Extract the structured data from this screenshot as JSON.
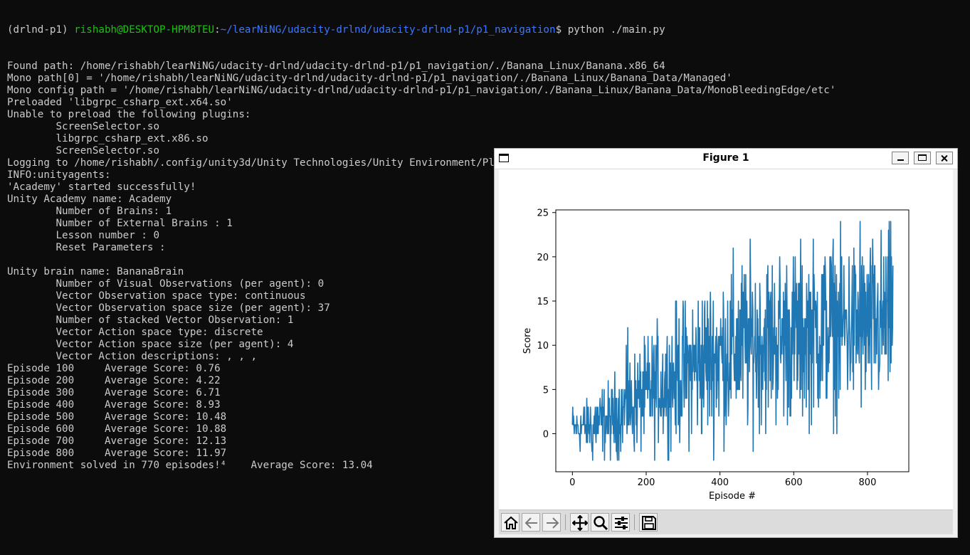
{
  "terminal": {
    "prompt": {
      "env": "(drlnd-p1) ",
      "user_host": "rishabh@DESKTOP-HPM8TEU",
      "sep": ":",
      "cwd": "~/learNiNG/udacity-drlnd/udacity-drlnd-p1/p1_navigation",
      "symbol": "$ ",
      "command": "python ./main.py"
    },
    "lines": [
      "Found path: /home/rishabh/learNiNG/udacity-drlnd/udacity-drlnd-p1/p1_navigation/./Banana_Linux/Banana.x86_64",
      "Mono path[0] = '/home/rishabh/learNiNG/udacity-drlnd/udacity-drlnd-p1/p1_navigation/./Banana_Linux/Banana_Data/Managed'",
      "Mono config path = '/home/rishabh/learNiNG/udacity-drlnd/udacity-drlnd-p1/p1_navigation/./Banana_Linux/Banana_Data/MonoBleedingEdge/etc'",
      "Preloaded 'libgrpc_csharp_ext.x64.so'",
      "Unable to preload the following plugins:",
      "        ScreenSelector.so",
      "        libgrpc_csharp_ext.x86.so",
      "        ScreenSelector.so",
      "Logging to /home/rishabh/.config/unity3d/Unity Technologies/Unity Environment/Player.log",
      "INFO:unityagents:",
      "'Academy' started successfully!",
      "Unity Academy name: Academy",
      "        Number of Brains: 1",
      "        Number of External Brains : 1",
      "        Lesson number : 0",
      "        Reset Parameters :",
      "",
      "Unity brain name: BananaBrain",
      "        Number of Visual Observations (per agent): 0",
      "        Vector Observation space type: continuous",
      "        Vector Observation space size (per agent): 37",
      "        Number of stacked Vector Observation: 1",
      "        Vector Action space type: discrete",
      "        Vector Action space size (per agent): 4",
      "        Vector Action descriptions: , , ,",
      "Episode 100     Average Score: 0.76",
      "Episode 200     Average Score: 4.22",
      "Episode 300     Average Score: 6.71",
      "Episode 400     Average Score: 8.93",
      "Episode 500     Average Score: 10.48",
      "Episode 600     Average Score: 10.88",
      "Episode 700     Average Score: 12.13",
      "Episode 800     Average Score: 11.97",
      "Environment solved in 770 episodes!⁴    Average Score: 13.04"
    ]
  },
  "figure": {
    "title": "Figure 1",
    "toolbar": {
      "home_icon": "home-icon",
      "back_icon": "arrow-left-icon",
      "forward_icon": "arrow-right-icon",
      "pan_icon": "move-icon",
      "zoom_icon": "magnifier-icon",
      "configure_icon": "sliders-icon",
      "save_icon": "floppy-disk-icon"
    }
  },
  "chart_data": {
    "type": "line",
    "xlabel": "Episode #",
    "ylabel": "Score",
    "xlim": [
      -45,
      912
    ],
    "ylim": [
      -4.3,
      25.3
    ],
    "xticks": [
      0,
      200,
      400,
      600,
      800
    ],
    "yticks": [
      0,
      5,
      10,
      15,
      20,
      25
    ],
    "grid": false,
    "line_color": "#1f77b4",
    "episodes": 870,
    "trend_points": [
      {
        "episode": 0,
        "score": 0.5
      },
      {
        "episode": 100,
        "score": 1.5
      },
      {
        "episode": 200,
        "score": 4.5
      },
      {
        "episode": 300,
        "score": 7.0
      },
      {
        "episode": 400,
        "score": 9.0
      },
      {
        "episode": 500,
        "score": 10.5
      },
      {
        "episode": 600,
        "score": 11.0
      },
      {
        "episode": 700,
        "score": 12.0
      },
      {
        "episode": 800,
        "score": 12.0
      },
      {
        "episode": 870,
        "score": 13.0
      }
    ],
    "notable_points": [
      {
        "episode": 55,
        "score": -3
      },
      {
        "episode": 150,
        "score": 12
      },
      {
        "episode": 780,
        "score": 24
      },
      {
        "episode": 865,
        "score": 20
      }
    ]
  }
}
